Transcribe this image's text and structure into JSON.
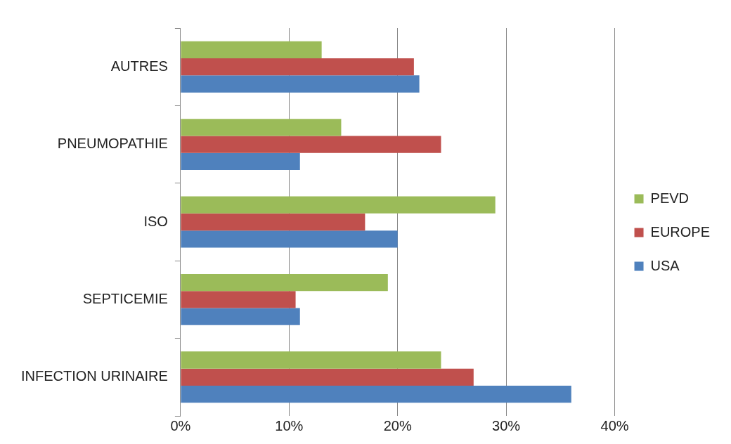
{
  "chart_data": {
    "type": "bar",
    "orientation": "horizontal",
    "categories": [
      "AUTRES",
      "PNEUMOPATHIE",
      "ISO",
      "SEPTICEMIE",
      "INFECTION URINAIRE"
    ],
    "series": [
      {
        "name": "PEVD",
        "color": "#9bbb59",
        "values": [
          13,
          14.8,
          29,
          19.1,
          24
        ]
      },
      {
        "name": "EUROPE",
        "color": "#c0504d",
        "values": [
          21.5,
          24,
          17,
          10.6,
          27
        ]
      },
      {
        "name": "USA",
        "color": "#4f81bd",
        "values": [
          22,
          11,
          20,
          11,
          36
        ]
      }
    ],
    "xlim": [
      0,
      40
    ],
    "xticks": [
      {
        "value": 0,
        "label": "0%"
      },
      {
        "value": 10,
        "label": "10%"
      },
      {
        "value": 20,
        "label": "20%"
      },
      {
        "value": 30,
        "label": "30%"
      },
      {
        "value": 40,
        "label": "40%"
      }
    ],
    "grid": "x",
    "legend": "right"
  }
}
